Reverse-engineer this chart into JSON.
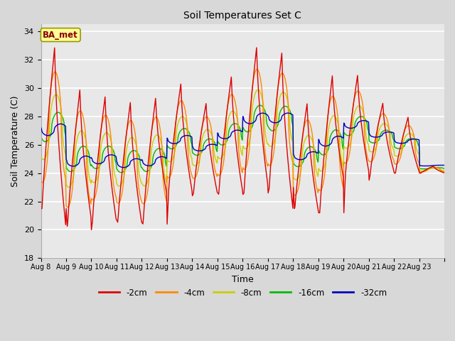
{
  "title": "Soil Temperatures Set C",
  "xlabel": "Time",
  "ylabel": "Soil Temperature (C)",
  "ylim": [
    18,
    34.5
  ],
  "yticks": [
    18,
    20,
    22,
    24,
    26,
    28,
    30,
    32,
    34
  ],
  "x_labels": [
    "Aug 8",
    "Aug 9",
    "Aug 10",
    "Aug 11",
    "Aug 12",
    "Aug 13",
    "Aug 14",
    "Aug 15",
    "Aug 16",
    "Aug 17",
    "Aug 18",
    "Aug 19",
    "Aug 20",
    "Aug 21",
    "Aug 22",
    "Aug 23"
  ],
  "n_days": 16,
  "fig_facecolor": "#d8d8d8",
  "ax_facecolor": "#e8e8e8",
  "annotation_text": "BA_met",
  "annotation_bg": "#ffff99",
  "annotation_border": "#999900",
  "annotation_fg": "#880000",
  "colors": {
    "-2cm": "#dd0000",
    "-4cm": "#ff8800",
    "-8cm": "#cccc00",
    "-16cm": "#00bb00",
    "-32cm": "#0000bb"
  },
  "legend_labels": [
    "-2cm",
    "-4cm",
    "-8cm",
    "-16cm",
    "-32cm"
  ],
  "peak_heights_2cm": [
    33.0,
    21.5,
    30.0,
    20.0,
    29.5,
    20.7,
    29.1,
    20.5,
    29.4,
    20.4,
    30.4,
    22.4,
    29.0,
    22.6,
    30.9,
    22.5,
    33.0,
    22.6,
    32.6,
    23.0,
    29.0,
    21.2,
    31.0,
    21.2,
    31.0,
    23.5,
    29.0,
    24.0,
    28.0,
    24.0,
    24.5,
    24.0
  ],
  "base_temp": 24.0,
  "amp_4cm": 3.2,
  "amp_8cm": 1.8,
  "amp_16cm": 0.9,
  "amp_32cm": 0.22,
  "phase_4cm": 0.06,
  "phase_8cm": 0.1,
  "phase_16cm": 0.18,
  "phase_32cm": 0.28
}
